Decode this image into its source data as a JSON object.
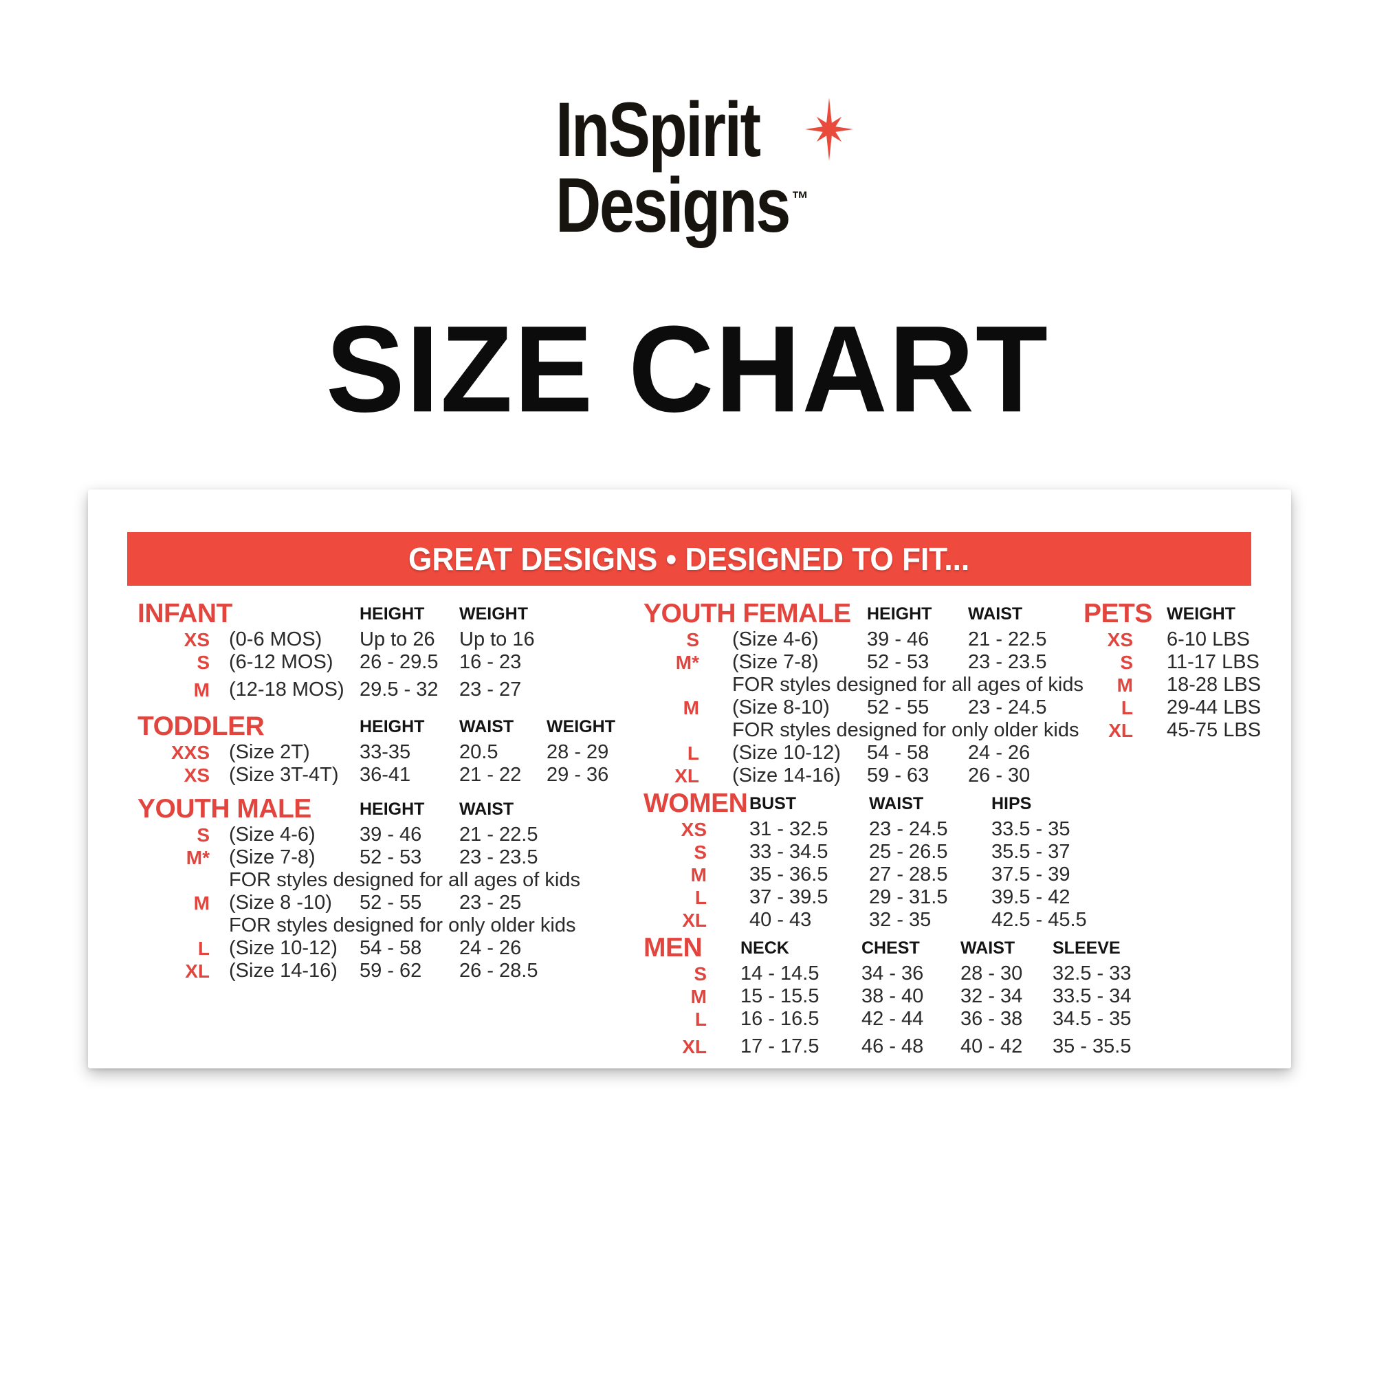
{
  "logo": {
    "line1": "InSpirit",
    "line2": "Designs",
    "trademark": "™",
    "star_icon": "sparkle-star-icon",
    "star_color": "#e84a3c",
    "text_color": "#17130f"
  },
  "page_title": "SIZE CHART",
  "banner": {
    "text": "GREAT DESIGNS • DESIGNED TO FIT...",
    "background": "#ef4a3e",
    "text_color": "#ffffff"
  },
  "colors": {
    "accent_bar": "#ef4a3e",
    "accent_text": "#e2453e",
    "body_text": "#2b2a2a"
  },
  "sections": [
    {
      "id": "infant",
      "title": "INFANT",
      "title_span": 2,
      "has_desc": true,
      "headers": [
        "HEIGHT",
        "WEIGHT"
      ],
      "rows": [
        {
          "size": "XS",
          "desc": "(0-6 MOS)",
          "values": [
            "Up to 26",
            "Up to 16"
          ]
        },
        {
          "size": "S",
          "desc": "(6-12 MOS)",
          "values": [
            "26 - 29.5",
            "16 - 23"
          ]
        },
        {
          "size": "M",
          "desc": "(12-18 MOS)",
          "values": [
            "29.5 - 32",
            "23 - 27"
          ],
          "gap": true
        }
      ]
    },
    {
      "id": "toddler",
      "title": "TODDLER",
      "title_span": 2,
      "has_desc": true,
      "headers": [
        "HEIGHT",
        "WAIST",
        "WEIGHT"
      ],
      "rows": [
        {
          "size": "XXS",
          "desc": "(Size 2T)",
          "values": [
            "33-35",
            "20.5",
            "28 - 29"
          ]
        },
        {
          "size": "XS",
          "desc": "(Size 3T-4T)",
          "values": [
            "36-41",
            "21 - 22",
            "29 - 36"
          ]
        }
      ]
    },
    {
      "id": "youth-male",
      "title": "YOUTH MALE",
      "title_span": 2,
      "has_desc": true,
      "headers": [
        "HEIGHT",
        "WAIST"
      ],
      "rows": [
        {
          "size": "S",
          "desc": "(Size 4-6)",
          "values": [
            "39 - 46",
            "21 - 22.5"
          ]
        },
        {
          "size": "M*",
          "desc": "(Size 7-8)",
          "values": [
            "52 - 53",
            "23 - 23.5"
          ]
        },
        {
          "note": "FOR styles designed for all ages of kids"
        },
        {
          "size": "M",
          "desc": "(Size 8 -10)",
          "values": [
            "52 - 55",
            "23 - 25"
          ]
        },
        {
          "note": "FOR styles designed for only older kids"
        },
        {
          "size": "L",
          "desc": "(Size 10-12)",
          "values": [
            "54 - 58",
            "24 - 26"
          ]
        },
        {
          "size": "XL",
          "desc": "(Size 14-16)",
          "values": [
            "59 - 62",
            "26 - 28.5"
          ]
        }
      ]
    },
    {
      "id": "youth-female",
      "title": "YOUTH FEMALE",
      "title_span": 2,
      "has_desc": true,
      "headers": [
        "HEIGHT",
        "WAIST"
      ],
      "rows": [
        {
          "size": "S",
          "desc": "(Size 4-6)",
          "values": [
            "39 - 46",
            "21 - 22.5"
          ]
        },
        {
          "size": "M*",
          "desc": "(Size 7-8)",
          "values": [
            "52 - 53",
            "23 - 23.5"
          ]
        },
        {
          "note": "FOR styles designed for all ages of kids"
        },
        {
          "size": "M",
          "desc": "(Size 8-10)",
          "values": [
            "52 - 55",
            "23 - 24.5"
          ]
        },
        {
          "note": "FOR styles designed for only older kids"
        },
        {
          "size": "L",
          "desc": "(Size 10-12)",
          "values": [
            "54 - 58",
            "24 - 26"
          ]
        },
        {
          "size": "XL",
          "desc": "(Size 14-16)",
          "values": [
            "59 - 63",
            "26 - 30"
          ]
        }
      ]
    },
    {
      "id": "women",
      "title": "WOMEN",
      "title_span": 1,
      "has_desc": false,
      "headers": [
        "BUST",
        "WAIST",
        "HIPS"
      ],
      "rows": [
        {
          "size": "XS",
          "values": [
            "31 - 32.5",
            "23 - 24.5",
            "33.5 - 35"
          ]
        },
        {
          "size": "S",
          "values": [
            "33 - 34.5",
            "25 - 26.5",
            "35.5 - 37"
          ]
        },
        {
          "size": "M",
          "values": [
            "35 - 36.5",
            "27 - 28.5",
            "37.5 - 39"
          ]
        },
        {
          "size": "L",
          "values": [
            "37 - 39.5",
            "29 - 31.5",
            "39.5 - 42"
          ]
        },
        {
          "size": "XL",
          "values": [
            "40 - 43",
            "32 - 35",
            "42.5 - 45.5"
          ]
        }
      ]
    },
    {
      "id": "men",
      "title": "MEN",
      "title_span": 1,
      "has_desc": false,
      "headers": [
        "NECK",
        "CHEST",
        "WAIST",
        "SLEEVE"
      ],
      "rows": [
        {
          "size": "S",
          "values": [
            "14 - 14.5",
            "34 - 36",
            "28 - 30",
            "32.5 - 33"
          ]
        },
        {
          "size": "M",
          "values": [
            "15 - 15.5",
            "38 - 40",
            "32 - 34",
            "33.5 - 34"
          ]
        },
        {
          "size": "L",
          "values": [
            "16 - 16.5",
            "42 - 44",
            "36 - 38",
            "34.5 - 35"
          ]
        },
        {
          "size": "XL",
          "values": [
            "17 - 17.5",
            "46 - 48",
            "40 - 42",
            "35 - 35.5"
          ],
          "gap": true
        }
      ]
    },
    {
      "id": "pets",
      "title": "PETS",
      "title_span": 1,
      "has_desc": false,
      "headers": [
        "WEIGHT"
      ],
      "rows": [
        {
          "size": "XS",
          "values": [
            "6-10 LBS"
          ]
        },
        {
          "size": "S",
          "values": [
            "11-17 LBS"
          ]
        },
        {
          "size": "M",
          "values": [
            "18-28 LBS"
          ]
        },
        {
          "size": "L",
          "values": [
            "29-44 LBS"
          ]
        },
        {
          "size": "XL",
          "values": [
            "45-75 LBS"
          ]
        }
      ]
    }
  ]
}
